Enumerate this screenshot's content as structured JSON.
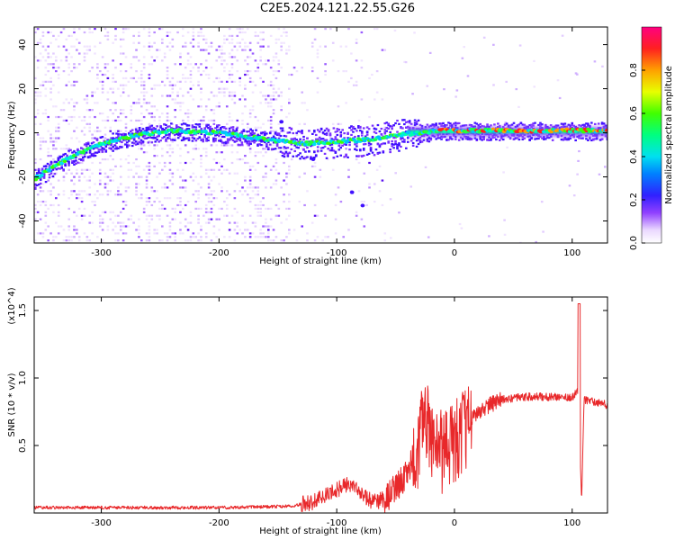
{
  "title": "C2E5.2024.121.22.55.G26",
  "chart_data": [
    {
      "type": "heatmap",
      "xlabel": "Height of straight line (km)",
      "ylabel": "Frequency (Hz)",
      "xlim": [
        -357,
        130
      ],
      "ylim": [
        -50,
        48
      ],
      "xticks": [
        -300,
        -200,
        -100,
        0,
        100
      ],
      "yticks": [
        -40,
        -20,
        0,
        20,
        40
      ],
      "grid": false,
      "colorbar": {
        "label": "Normalized spectral amplitude",
        "range": [
          0,
          1
        ],
        "ticks": [
          "0.0",
          "0.2",
          "0.4",
          "0.6",
          "0.8"
        ]
      },
      "signal_trace": {
        "x": [
          -357,
          -330,
          -300,
          -270,
          -240,
          -200,
          -160,
          -130,
          -100,
          -70,
          -50,
          -30,
          -10,
          0,
          50,
          100,
          130
        ],
        "y": [
          -21,
          -12,
          -5,
          -1,
          1,
          0,
          -3,
          -5,
          -4,
          -3,
          -1,
          0,
          1,
          1,
          1,
          1,
          1
        ]
      }
    },
    {
      "type": "line",
      "xlabel": "Height of straight line (km)",
      "ylabel": "SNR (10 * v/v)",
      "y_multiplier": "(x10^4)",
      "xlim": [
        -357,
        130
      ],
      "ylim": [
        0,
        1.6
      ],
      "xticks": [
        -300,
        -200,
        -100,
        0,
        100
      ],
      "yticks": [
        0.5,
        1.0,
        1.5
      ],
      "ytick_labels": [
        "0.5",
        "1.0",
        "1.5"
      ],
      "grid": false,
      "series": [
        {
          "color": "#e8282a",
          "x": [
            -357,
            -300,
            -200,
            -140,
            -120,
            -100,
            -90,
            -80,
            -70,
            -60,
            -50,
            -40,
            -30,
            -25,
            -20,
            -10,
            0,
            10,
            20,
            30,
            40,
            60,
            80,
            100,
            105,
            108,
            110,
            120,
            130
          ],
          "y": [
            0.04,
            0.04,
            0.04,
            0.05,
            0.08,
            0.17,
            0.22,
            0.15,
            0.08,
            0.1,
            0.18,
            0.3,
            0.5,
            0.75,
            0.55,
            0.45,
            0.5,
            0.65,
            0.75,
            0.8,
            0.84,
            0.86,
            0.86,
            0.86,
            0.9,
            0.08,
            0.84,
            0.82,
            0.8
          ]
        }
      ]
    }
  ]
}
